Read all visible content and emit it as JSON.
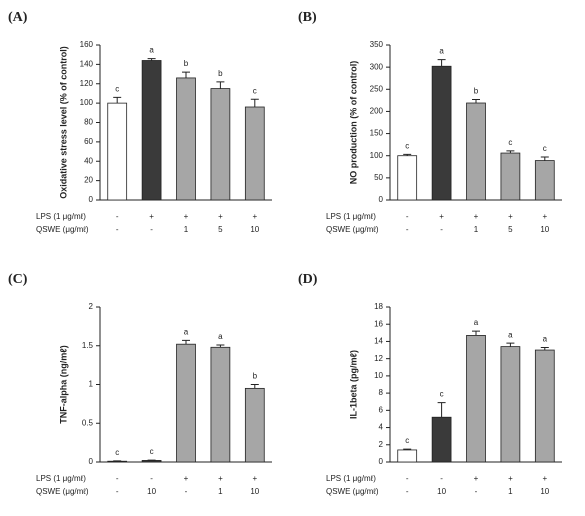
{
  "chart_data": [
    {
      "type": "bar",
      "panel": "(A)",
      "ylabel": "Oxidative stress level (% of control)",
      "values": [
        100,
        144,
        126,
        115,
        96
      ],
      "errors": [
        6,
        2,
        6,
        7,
        8
      ],
      "letters": [
        "c",
        "a",
        "b",
        "b",
        "c"
      ],
      "colors": [
        "#ffffff",
        "#3a3a3a",
        "#a6a6a6",
        "#a6a6a6",
        "#a6a6a6"
      ],
      "ylim": [
        0,
        160
      ],
      "yticks": [
        0,
        20,
        40,
        60,
        80,
        100,
        120,
        140,
        160
      ],
      "conditions": [
        {
          "name": "LPS (1 μg/mℓ)",
          "values": [
            "-",
            "+",
            "+",
            "+",
            "+"
          ]
        },
        {
          "name": "QSWE (μg/mℓ)",
          "values": [
            "-",
            "-",
            "1",
            "5",
            "10"
          ]
        }
      ]
    },
    {
      "type": "bar",
      "panel": "(B)",
      "ylabel": "NO production (% of control)",
      "values": [
        100,
        302,
        219,
        106,
        89
      ],
      "errors": [
        3,
        15,
        8,
        5,
        8
      ],
      "letters": [
        "c",
        "a",
        "b",
        "c",
        "c"
      ],
      "colors": [
        "#ffffff",
        "#3a3a3a",
        "#a6a6a6",
        "#a6a6a6",
        "#a6a6a6"
      ],
      "ylim": [
        0,
        350
      ],
      "yticks": [
        0,
        50,
        100,
        150,
        200,
        250,
        300,
        350
      ],
      "conditions": [
        {
          "name": "LPS (1 μg/mℓ)",
          "values": [
            "-",
            "+",
            "+",
            "+",
            "+"
          ]
        },
        {
          "name": "QSWE (μg/mℓ)",
          "values": [
            "-",
            "-",
            "1",
            "5",
            "10"
          ]
        }
      ]
    },
    {
      "type": "bar",
      "panel": "(C)",
      "ylabel": "TNF-alpha (ng/mℓ)",
      "values": [
        0.01,
        0.02,
        1.52,
        1.48,
        0.95
      ],
      "errors": [
        0.005,
        0.005,
        0.05,
        0.03,
        0.05
      ],
      "letters": [
        "c",
        "c",
        "a",
        "a",
        "b"
      ],
      "colors": [
        "#ffffff",
        "#3a3a3a",
        "#a6a6a6",
        "#a6a6a6",
        "#a6a6a6"
      ],
      "ylim": [
        0,
        2
      ],
      "yticks": [
        0,
        0.5,
        1,
        1.5,
        2
      ],
      "conditions": [
        {
          "name": "LPS (1 μg/mℓ)",
          "values": [
            "-",
            "-",
            "+",
            "+",
            "+"
          ]
        },
        {
          "name": "QSWE (μg/mℓ)",
          "values": [
            "-",
            "10",
            "-",
            "1",
            "10"
          ]
        }
      ]
    },
    {
      "type": "bar",
      "panel": "(D)",
      "ylabel": "IL-1beta (pg/mℓ)",
      "values": [
        1.4,
        5.2,
        14.7,
        13.4,
        13.0
      ],
      "errors": [
        0.1,
        1.7,
        0.5,
        0.4,
        0.3
      ],
      "letters": [
        "c",
        "c",
        "a",
        "a",
        "a"
      ],
      "colors": [
        "#ffffff",
        "#3a3a3a",
        "#a6a6a6",
        "#a6a6a6",
        "#a6a6a6"
      ],
      "ylim": [
        0,
        18
      ],
      "yticks": [
        0,
        2,
        4,
        6,
        8,
        10,
        12,
        14,
        16,
        18
      ],
      "conditions": [
        {
          "name": "LPS (1 μg/mℓ)",
          "values": [
            "-",
            "-",
            "+",
            "+",
            "+"
          ]
        },
        {
          "name": "QSWE (μg/mℓ)",
          "values": [
            "-",
            "10",
            "-",
            "1",
            "10"
          ]
        }
      ]
    }
  ]
}
